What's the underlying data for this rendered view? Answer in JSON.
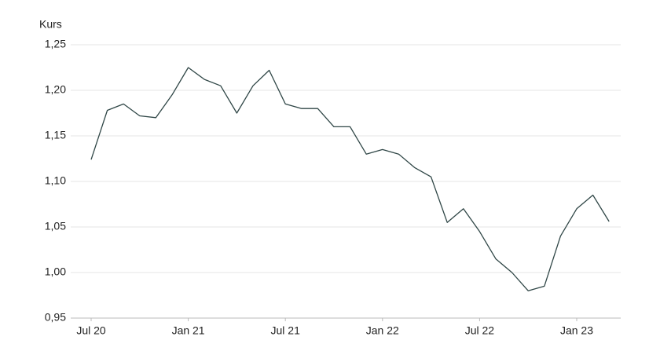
{
  "chart_data": {
    "type": "line",
    "y_label": "Kurs",
    "x": [
      "2020-07",
      "2020-08",
      "2020-09",
      "2020-10",
      "2020-11",
      "2020-12",
      "2021-01",
      "2021-02",
      "2021-03",
      "2021-04",
      "2021-05",
      "2021-06",
      "2021-07",
      "2021-08",
      "2021-09",
      "2021-10",
      "2021-11",
      "2021-12",
      "2022-01",
      "2022-02",
      "2022-03",
      "2022-04",
      "2022-05",
      "2022-06",
      "2022-07",
      "2022-08",
      "2022-09",
      "2022-10",
      "2022-11",
      "2022-12",
      "2023-01",
      "2023-02",
      "2023-03"
    ],
    "series": [
      {
        "name": "Kurs",
        "color": "#2f4646",
        "values": [
          1.124,
          1.178,
          1.185,
          1.172,
          1.17,
          1.195,
          1.225,
          1.212,
          1.205,
          1.175,
          1.205,
          1.222,
          1.185,
          1.18,
          1.18,
          1.16,
          1.16,
          1.13,
          1.135,
          1.13,
          1.115,
          1.105,
          1.055,
          1.07,
          1.045,
          1.015,
          1.0,
          0.98,
          0.985,
          1.04,
          1.07,
          1.085,
          1.056
        ]
      }
    ],
    "xticks": [
      {
        "value": "2020-07",
        "label": "Jul 20"
      },
      {
        "value": "2021-01",
        "label": "Jan 21"
      },
      {
        "value": "2021-07",
        "label": "Jul 21"
      },
      {
        "value": "2022-01",
        "label": "Jan 22"
      },
      {
        "value": "2022-07",
        "label": "Jul 22"
      },
      {
        "value": "2023-01",
        "label": "Jan 23"
      }
    ],
    "ylim": [
      0.95,
      1.25
    ],
    "yticks": [
      {
        "value": 0.95,
        "label": "0,95"
      },
      {
        "value": 1.0,
        "label": "1,00"
      },
      {
        "value": 1.05,
        "label": "1,05"
      },
      {
        "value": 1.1,
        "label": "1,10"
      },
      {
        "value": 1.15,
        "label": "1,15"
      },
      {
        "value": 1.2,
        "label": "1,20"
      },
      {
        "value": 1.25,
        "label": "1,25"
      }
    ],
    "grid": true
  }
}
